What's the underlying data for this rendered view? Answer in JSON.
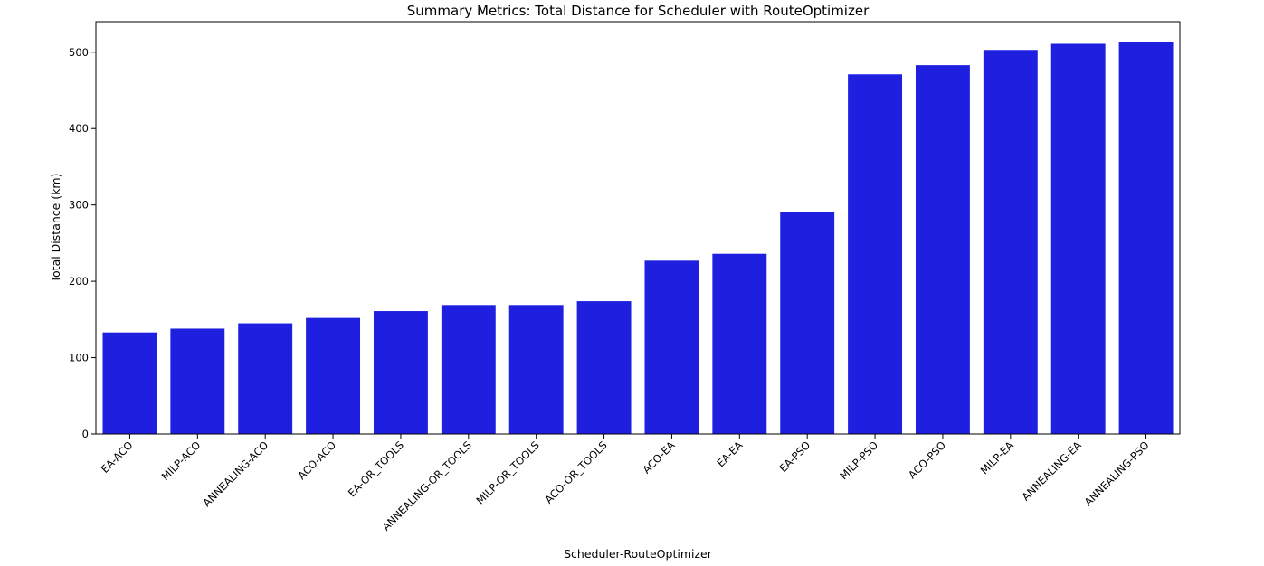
{
  "chart_data": {
    "type": "bar",
    "title": "Summary Metrics: Total Distance for Scheduler with RouteOptimizer",
    "xlabel": "Scheduler-RouteOptimizer",
    "ylabel": "Total Distance (km)",
    "categories": [
      "EA-ACO",
      "MILP-ACO",
      "ANNEALING-ACO",
      "ACO-ACO",
      "EA-OR_TOOLS",
      "ANNEALING-OR_TOOLS",
      "MILP-OR_TOOLS",
      "ACO-OR_TOOLS",
      "ACO-EA",
      "EA-EA",
      "EA-PSO",
      "MILP-PSO",
      "ACO-PSO",
      "MILP-EA",
      "ANNEALING-EA",
      "ANNEALING-PSO"
    ],
    "values": [
      133,
      138,
      145,
      152,
      161,
      169,
      169,
      174,
      227,
      236,
      291,
      471,
      483,
      503,
      511,
      513
    ],
    "ylim": [
      0,
      540
    ],
    "yticks": [
      0,
      100,
      200,
      300,
      400,
      500
    ],
    "bar_color": "#1f1fe0",
    "grid": false,
    "legend": "none"
  }
}
